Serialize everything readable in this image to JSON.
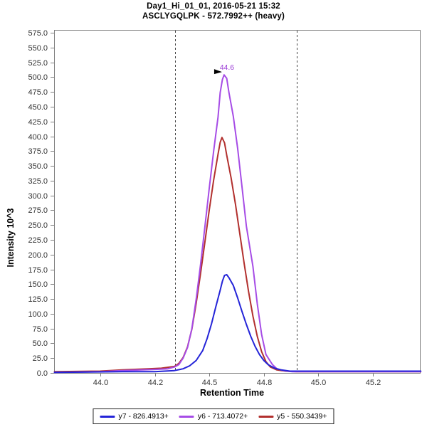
{
  "chart_data": {
    "type": "line",
    "title": "Day1_Hi_01_01, 2016-05-21 15:32",
    "subtitle": "ASCLYGQLPK - 572.7992++ (heavy)",
    "xlabel": "Retention Time",
    "ylabel": "Intensity 10^3",
    "xlim": [
      43.788,
      45.466
    ],
    "ylim": [
      0,
      580
    ],
    "grid": false,
    "legend_position": "bottom",
    "frame_color": "#7f7f7f",
    "tick_label_color": "#333333",
    "x_ticks": {
      "values": [
        44.0,
        44.25,
        44.5,
        44.75,
        45.0,
        45.25
      ],
      "labels": [
        "44.0",
        "44.2",
        "44.5",
        "44.8",
        "45.0",
        "45.2"
      ]
    },
    "y_ticks": {
      "values": [
        0,
        25,
        50,
        75,
        100,
        125,
        150,
        175,
        200,
        225,
        250,
        275,
        300,
        325,
        350,
        375,
        400,
        425,
        450,
        475,
        500,
        525,
        550,
        575
      ],
      "labels": [
        "0.0",
        "25.0",
        "50.0",
        "75.0",
        "100.0",
        "125.0",
        "150.0",
        "175.0",
        "200.0",
        "225.0",
        "250.0",
        "275.0",
        "300.0",
        "325.0",
        "350.0",
        "375.0",
        "400.0",
        "425.0",
        "450.0",
        "475.0",
        "500.0",
        "525.0",
        "550.0",
        "575.0"
      ]
    },
    "integration_boundaries": [
      44.343,
      44.901
    ],
    "boundary_color": "#444444",
    "peak_annotation": {
      "text": "44.6",
      "rt": 44.568,
      "value": 504,
      "color": "#9b3dd6",
      "arrow_color": "#000000"
    },
    "series": [
      {
        "name": "y7 - 826.4913+",
        "color": "#2424d8",
        "points": [
          [
            43.79,
            1
          ],
          [
            44.1,
            2
          ],
          [
            44.25,
            2
          ],
          [
            44.34,
            4
          ],
          [
            44.38,
            7
          ],
          [
            44.41,
            12
          ],
          [
            44.44,
            21
          ],
          [
            44.47,
            38
          ],
          [
            44.49,
            58
          ],
          [
            44.51,
            83
          ],
          [
            44.53,
            112
          ],
          [
            44.55,
            140
          ],
          [
            44.56,
            155
          ],
          [
            44.57,
            165
          ],
          [
            44.58,
            166
          ],
          [
            44.59,
            161
          ],
          [
            44.61,
            148
          ],
          [
            44.63,
            127
          ],
          [
            44.65,
            104
          ],
          [
            44.67,
            82
          ],
          [
            44.69,
            62
          ],
          [
            44.71,
            45
          ],
          [
            44.73,
            31
          ],
          [
            44.75,
            21
          ],
          [
            44.77,
            14
          ],
          [
            44.8,
            8
          ],
          [
            44.83,
            5
          ],
          [
            44.87,
            3
          ],
          [
            44.92,
            3
          ],
          [
            45.0,
            3
          ],
          [
            45.47,
            3
          ]
        ]
      },
      {
        "name": "y6 - 713.4072+",
        "color": "#a64ce6",
        "points": [
          [
            43.79,
            1
          ],
          [
            44.0,
            2
          ],
          [
            44.1,
            4
          ],
          [
            44.19,
            5
          ],
          [
            44.26,
            6
          ],
          [
            44.31,
            7
          ],
          [
            44.34,
            10
          ],
          [
            44.36,
            14
          ],
          [
            44.38,
            25
          ],
          [
            44.4,
            43
          ],
          [
            44.42,
            75
          ],
          [
            44.44,
            125
          ],
          [
            44.46,
            183
          ],
          [
            44.48,
            248
          ],
          [
            44.5,
            313
          ],
          [
            44.52,
            375
          ],
          [
            44.54,
            433
          ],
          [
            44.55,
            474
          ],
          [
            44.56,
            496
          ],
          [
            44.568,
            504
          ],
          [
            44.58,
            498
          ],
          [
            44.59,
            474
          ],
          [
            44.61,
            434
          ],
          [
            44.63,
            380
          ],
          [
            44.65,
            315
          ],
          [
            44.67,
            248
          ],
          [
            44.7,
            180
          ],
          [
            44.72,
            117
          ],
          [
            44.74,
            65
          ],
          [
            44.76,
            31
          ],
          [
            44.79,
            14
          ],
          [
            44.81,
            7
          ],
          [
            44.84,
            4
          ],
          [
            44.88,
            2
          ],
          [
            44.9,
            2
          ],
          [
            45.01,
            2
          ],
          [
            45.47,
            2
          ]
        ]
      },
      {
        "name": "y5 - 550.3439+",
        "color": "#b2302e",
        "points": [
          [
            43.79,
            2
          ],
          [
            44.0,
            3
          ],
          [
            44.1,
            5
          ],
          [
            44.16,
            6
          ],
          [
            44.22,
            7
          ],
          [
            44.28,
            8
          ],
          [
            44.34,
            11
          ],
          [
            44.36,
            16
          ],
          [
            44.38,
            26
          ],
          [
            44.4,
            44
          ],
          [
            44.42,
            74
          ],
          [
            44.44,
            118
          ],
          [
            44.46,
            168
          ],
          [
            44.48,
            222
          ],
          [
            44.5,
            276
          ],
          [
            44.52,
            326
          ],
          [
            44.54,
            370
          ],
          [
            44.55,
            390
          ],
          [
            44.558,
            398
          ],
          [
            44.57,
            389
          ],
          [
            44.58,
            368
          ],
          [
            44.6,
            330
          ],
          [
            44.62,
            285
          ],
          [
            44.64,
            235
          ],
          [
            44.66,
            185
          ],
          [
            44.68,
            138
          ],
          [
            44.7,
            96
          ],
          [
            44.72,
            62
          ],
          [
            44.74,
            36
          ],
          [
            44.76,
            19
          ],
          [
            44.78,
            10
          ],
          [
            44.81,
            5
          ],
          [
            44.85,
            3
          ],
          [
            44.9,
            2
          ],
          [
            45.0,
            2
          ],
          [
            45.47,
            2
          ]
        ]
      }
    ]
  }
}
